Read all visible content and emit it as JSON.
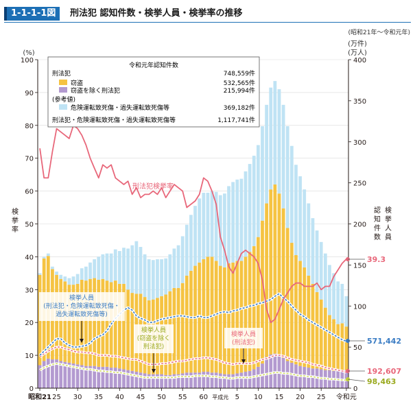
{
  "header": {
    "figure_no": "1-1-1-1図",
    "title": "刑法犯 認知件数・検挙人員・検挙率の推移"
  },
  "period_note": "(昭和21年～令和元年)",
  "left_axis": {
    "unit": "(%)",
    "title": "検挙率"
  },
  "right_axis": {
    "unit1": "(万件)",
    "unit2": "(万人)",
    "title1": "認知件数",
    "title2": "検挙人員"
  },
  "legend": {
    "heading": "令和元年認知件数",
    "rows": [
      {
        "label": "刑法犯",
        "value": "748,559件"
      },
      {
        "label": "窃盗",
        "value": "532,565件",
        "swatch": "#f5c342"
      },
      {
        "label": "窃盗を除く刑法犯",
        "value": "215,994件",
        "swatch": "#b39ad0"
      },
      {
        "label": "(参考値)",
        "value": ""
      },
      {
        "label": "危険運転致死傷・過失運転致死傷等",
        "value": "369,182件",
        "swatch": "#bfe3f4"
      },
      {
        "label": "刑法犯・危険運転致死傷・過失運転致死傷等",
        "value": "1,117,741件"
      }
    ]
  },
  "annotations": {
    "rate_label": "刑法犯検挙率",
    "arrested_all": [
      "検挙人員",
      "(刑法犯・危険運転致死傷・",
      "過失運転致死傷等)"
    ],
    "arrested_ex_theft": [
      "検挙人員",
      "(窃盗を除く",
      "刑法犯)"
    ],
    "arrested_penal": [
      "検挙人員",
      "(刑法犯)"
    ]
  },
  "end_values": {
    "rate": "39.3",
    "arrested_all": "571,442",
    "arrested_penal": "192,607",
    "arrested_ex_theft": "98,463"
  },
  "colors": {
    "theft": "#f5c342",
    "non_theft": "#b39ad0",
    "traffic": "#bfe3f4",
    "rate_line": "#e8677a",
    "arrested_all_line": "#3a7cc4",
    "arrested_penal_line": "#e8677a",
    "arrested_ex_theft_line": "#d0db5a",
    "header_bg": "#1c6fb5"
  },
  "chart_data": {
    "type": "bar",
    "x_tick_labels": [
      "昭和21",
      "25",
      "30",
      "35",
      "40",
      "45",
      "50",
      "55",
      "60",
      "平成元",
      "5",
      "10",
      "15",
      "20",
      "25",
      "令和元"
    ],
    "years": [
      "昭和21",
      "昭和22",
      "昭和23",
      "昭和24",
      "昭和25",
      "昭和26",
      "昭和27",
      "昭和28",
      "昭和29",
      "昭和30",
      "昭和31",
      "昭和32",
      "昭和33",
      "昭和34",
      "昭和35",
      "昭和36",
      "昭和37",
      "昭和38",
      "昭和39",
      "昭和40",
      "昭和41",
      "昭和42",
      "昭和43",
      "昭和44",
      "昭和45",
      "昭和46",
      "昭和47",
      "昭和48",
      "昭和49",
      "昭和50",
      "昭和51",
      "昭和52",
      "昭和53",
      "昭和54",
      "昭和55",
      "昭和56",
      "昭和57",
      "昭和58",
      "昭和59",
      "昭和60",
      "昭和61",
      "昭和62",
      "昭和63",
      "平成元",
      "平成2",
      "平成3",
      "平成4",
      "平成5",
      "平成6",
      "平成7",
      "平成8",
      "平成9",
      "平成10",
      "平成11",
      "平成12",
      "平成13",
      "平成14",
      "平成15",
      "平成16",
      "平成17",
      "平成18",
      "平成19",
      "平成20",
      "平成21",
      "平成22",
      "平成23",
      "平成24",
      "平成25",
      "平成26",
      "平成27",
      "平成28",
      "平成29",
      "平成30",
      "令和元"
    ],
    "ylim_left": [
      0,
      100
    ],
    "ylim_right": [
      0,
      400
    ],
    "left_ticks": [
      0,
      10,
      20,
      30,
      40,
      50,
      60,
      70,
      80,
      90,
      100
    ],
    "right_ticks": [
      0,
      50,
      100,
      150,
      200,
      250,
      300,
      350,
      400
    ],
    "series": [
      {
        "name": "窃盗",
        "axis": "right",
        "kind": "bar",
        "values": [
          110,
          125,
          125,
          110,
          103,
          100,
          98,
          95,
          96,
          98,
          104,
          104,
          106,
          107,
          106,
          107,
          105,
          104,
          106,
          103,
          104,
          98,
          95,
          95,
          96,
          93,
          90,
          91,
          93,
          95,
          98,
          102,
          105,
          105,
          110,
          118,
          124,
          130,
          134,
          137,
          140,
          141,
          136,
          131,
          130,
          135,
          136,
          137,
          136,
          140,
          145,
          150,
          158,
          174,
          187,
          201,
          206,
          197,
          182,
          162,
          146,
          133,
          128,
          121,
          112,
          103,
          93,
          85,
          76,
          67,
          63,
          57,
          58,
          53
        ]
      },
      {
        "name": "窃盗を除く刑法犯",
        "axis": "right",
        "kind": "bar",
        "values": [
          28,
          33,
          36,
          35,
          35,
          33,
          32,
          31,
          30,
          29,
          28,
          27,
          27,
          27,
          26,
          26,
          26,
          25,
          25,
          24,
          23,
          22,
          21,
          20,
          19,
          18,
          17,
          17,
          17,
          17,
          16,
          16,
          17,
          17,
          18,
          19,
          19,
          19,
          19,
          20,
          20,
          19,
          19,
          18,
          17,
          17,
          17,
          18,
          19,
          20,
          21,
          23,
          26,
          30,
          38,
          41,
          42,
          40,
          37,
          33,
          31,
          29,
          27,
          26,
          25,
          24,
          24,
          23,
          22,
          22,
          21,
          21,
          21,
          22
        ]
      },
      {
        "name": "危険運転致死傷・過失運転致死傷等",
        "axis": "right",
        "kind": "bar",
        "values": [
          2,
          2,
          3,
          3,
          4,
          5,
          6,
          8,
          10,
          12,
          14,
          17,
          20,
          23,
          28,
          30,
          33,
          35,
          38,
          40,
          44,
          50,
          58,
          64,
          57,
          52,
          50,
          48,
          47,
          45,
          44,
          45,
          48,
          52,
          57,
          62,
          68,
          73,
          78,
          81,
          78,
          80,
          84,
          86,
          90,
          94,
          98,
          99,
          100,
          104,
          107,
          110,
          112,
          115,
          120,
          124,
          126,
          127,
          126,
          124,
          118,
          110,
          103,
          95,
          88,
          80,
          75,
          70,
          66,
          61,
          56,
          52,
          48,
          37
        ]
      },
      {
        "name": "刑法犯検挙率",
        "axis": "left",
        "kind": "line",
        "values": [
          73,
          64,
          64,
          72,
          79,
          78,
          77,
          76,
          80,
          79,
          77,
          74,
          70,
          67,
          64,
          68,
          67,
          68,
          64,
          63,
          62,
          63,
          59,
          61,
          58,
          59,
          59,
          60,
          59,
          61,
          58,
          60,
          62,
          61,
          60,
          55,
          56,
          57,
          59,
          64,
          63,
          60,
          56,
          46,
          42,
          37,
          35,
          38,
          41,
          42,
          41,
          40,
          38,
          33,
          24,
          20,
          21,
          24,
          27,
          29,
          31,
          32,
          32,
          31,
          31,
          31,
          32,
          30,
          31,
          31,
          34,
          36,
          38,
          39.3
        ]
      },
      {
        "name": "検挙人員(刑法犯・危険運転致死傷・過失運転致死傷等)",
        "axis": "right",
        "kind": "line",
        "values": [
          40,
          45,
          50,
          55,
          60,
          60,
          55,
          52,
          50,
          50,
          51,
          52,
          55,
          60,
          63,
          65,
          70,
          78,
          85,
          90,
          95,
          98,
          95,
          88,
          85,
          83,
          80,
          80,
          82,
          84,
          85,
          86,
          87,
          88,
          88,
          87,
          86,
          86,
          88,
          86,
          86,
          88,
          90,
          92,
          93,
          92,
          94,
          95,
          97,
          98,
          100,
          101,
          103,
          104,
          106,
          108,
          112,
          115,
          110,
          106,
          100,
          95,
          90,
          87,
          83,
          80,
          77,
          74,
          71,
          68,
          65,
          62,
          59,
          57.1
        ]
      },
      {
        "name": "検挙人員(刑法犯)",
        "axis": "right",
        "kind": "line",
        "values": [
          38,
          42,
          45,
          48,
          50,
          50,
          48,
          47,
          45,
          44,
          44,
          43,
          43,
          42,
          40,
          40,
          40,
          39,
          39,
          38,
          37,
          36,
          35,
          35,
          33,
          31,
          29,
          29,
          29,
          30,
          30,
          31,
          32,
          33,
          33,
          34,
          35,
          36,
          36,
          37,
          37,
          36,
          35,
          33,
          31,
          30,
          29,
          30,
          30,
          30,
          30,
          31,
          33,
          35,
          36,
          38,
          40,
          40,
          39,
          37,
          35,
          34,
          33,
          32,
          31,
          29,
          28,
          27,
          25,
          24,
          23,
          22,
          21,
          19.3
        ]
      },
      {
        "name": "検挙人員(窃盗を除く刑法犯)",
        "axis": "right",
        "kind": "line",
        "values": [
          22,
          25,
          27,
          29,
          30,
          29,
          28,
          27,
          26,
          25,
          24,
          23,
          23,
          22,
          21,
          21,
          20,
          20,
          19,
          19,
          18,
          17,
          16,
          15,
          14,
          13,
          13,
          13,
          13,
          13,
          13,
          13,
          13,
          14,
          14,
          14,
          14,
          15,
          15,
          15,
          15,
          14,
          14,
          13,
          13,
          12,
          12,
          13,
          13,
          13,
          13,
          14,
          15,
          16,
          17,
          18,
          19,
          19,
          18,
          18,
          17,
          16,
          15,
          15,
          14,
          14,
          13,
          12,
          12,
          11,
          11,
          10.5,
          10,
          9.8
        ]
      }
    ]
  }
}
